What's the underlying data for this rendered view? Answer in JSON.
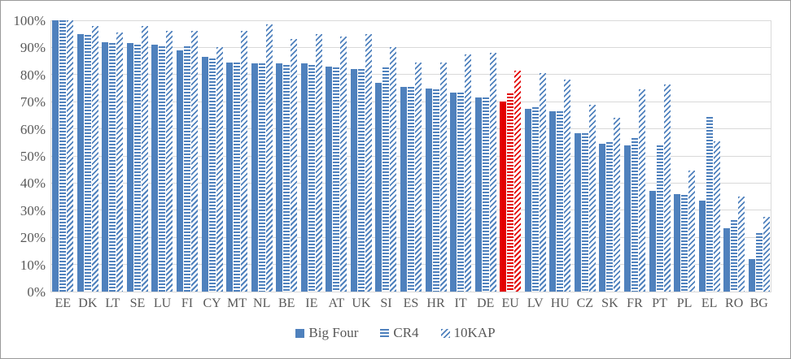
{
  "chart_data": {
    "type": "bar",
    "title": "",
    "categories": [
      "EE",
      "DK",
      "LT",
      "SE",
      "LU",
      "FI",
      "CY",
      "MT",
      "NL",
      "BE",
      "IE",
      "AT",
      "UK",
      "SI",
      "ES",
      "HR",
      "IT",
      "DE",
      "EU",
      "LV",
      "HU",
      "CZ",
      "SK",
      "FR",
      "PT",
      "PL",
      "EL",
      "RO",
      "BG"
    ],
    "series": [
      {
        "name": "Big Four",
        "pattern": "solid",
        "values": [
          100,
          95,
          92,
          91.5,
          91,
          89,
          86.5,
          84.5,
          84,
          84,
          84,
          83,
          82,
          77,
          75.5,
          75,
          73.5,
          71.5,
          70,
          67.5,
          66.5,
          58.5,
          54.5,
          54,
          37,
          36,
          33.5,
          23.5,
          12
        ]
      },
      {
        "name": "CR4",
        "pattern": "hstripe",
        "values": [
          100,
          94.5,
          91.5,
          91,
          90.5,
          90.5,
          86,
          84.5,
          84,
          83.5,
          83.5,
          82.5,
          82,
          82.5,
          75.5,
          74.5,
          73.5,
          71.5,
          73,
          68,
          66.5,
          58.5,
          55,
          56.5,
          54,
          35.5,
          64.5,
          26.5,
          21.5
        ]
      },
      {
        "name": "10KAP",
        "pattern": "dstripe",
        "values": [
          100,
          98,
          95.5,
          98,
          96,
          96,
          90,
          96,
          98.5,
          93,
          95,
          94,
          95,
          90,
          84.5,
          84.5,
          87.5,
          88,
          81.5,
          80.5,
          78,
          69,
          64,
          74.5,
          76.5,
          44.5,
          55.5,
          35,
          27.5
        ]
      }
    ],
    "ylim": [
      0,
      100
    ],
    "y_ticks": [
      "0%",
      "10%",
      "20%",
      "30%",
      "40%",
      "50%",
      "60%",
      "70%",
      "80%",
      "90%",
      "100%"
    ],
    "highlight_category": "EU",
    "grid": true,
    "legend_position": "bottom",
    "colors": {
      "bar_blue": "#4f81bd",
      "highlight_red": "#e30000",
      "gridline": "#d9d9d9",
      "axis_text": "#595959",
      "frame_border": "#9a9a9a",
      "background": "#ffffff"
    }
  },
  "legend": {
    "items": [
      "Big Four",
      "CR4",
      "10KAP"
    ]
  }
}
